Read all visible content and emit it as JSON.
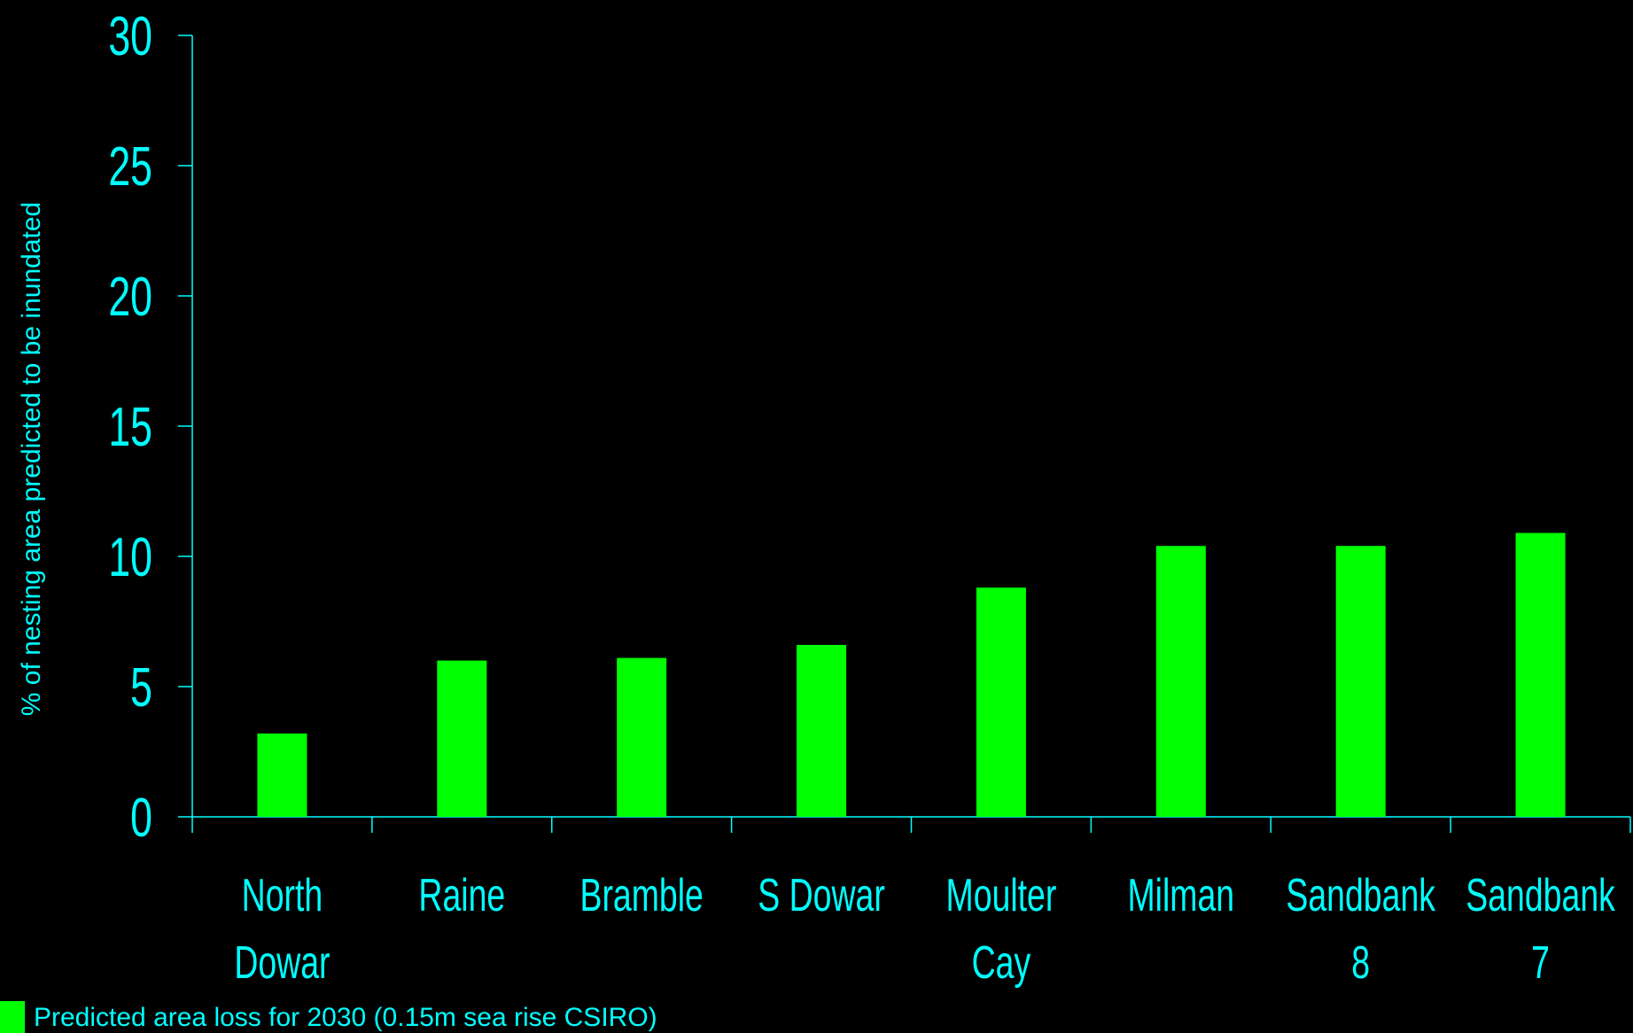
{
  "chart_data": {
    "type": "bar",
    "categories": [
      [
        "North",
        "Dowar"
      ],
      [
        "Raine"
      ],
      [
        "Bramble"
      ],
      [
        "S Dowar"
      ],
      [
        "Moulter",
        "Cay"
      ],
      [
        "Milman"
      ],
      [
        "Sandbank",
        "8"
      ],
      [
        "Sandbank",
        "7"
      ]
    ],
    "series": [
      {
        "name": "Predicted area loss for 2030 (0.15m sea rise CSIRO)",
        "values": [
          3.2,
          6.0,
          6.1,
          6.6,
          8.8,
          10.4,
          10.4,
          10.9
        ],
        "color": "#00ff00"
      }
    ],
    "ylabel": "% of nesting area predicted to be inundated",
    "xlabel": "",
    "ylim": [
      0,
      30
    ],
    "yticks": [
      0,
      5,
      10,
      15,
      20,
      25,
      30
    ],
    "grid": false,
    "legend_position": "bottom-left",
    "axis_color": "#00ffff",
    "background": "#000000"
  }
}
